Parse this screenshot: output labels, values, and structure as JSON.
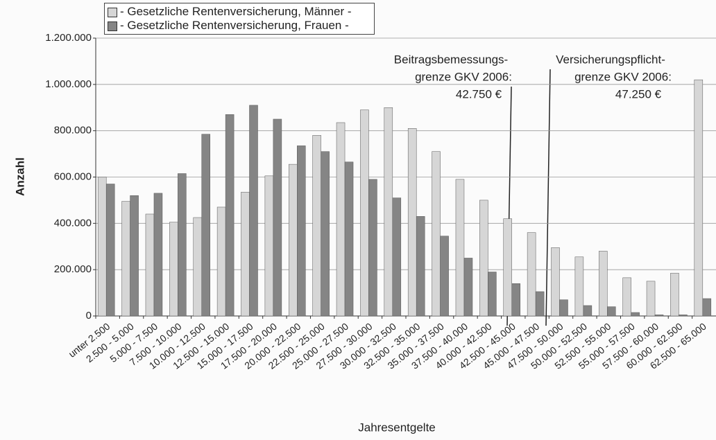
{
  "chart_data": {
    "type": "bar",
    "xlabel": "Jahresentgelte",
    "ylabel": "Anzahl",
    "categories": [
      "unter 2.500",
      "2.500 - 5.000",
      "5.000 - 7.500",
      "7.500 - 10.000",
      "10.000 - 12.500",
      "12.500 - 15.000",
      "15.000 - 17.500",
      "17.500 - 20.000",
      "20.000 - 22.500",
      "22.500 - 25.000",
      "25.000 - 27.500",
      "27.500 - 30.000",
      "30.000 - 32.500",
      "32.500 - 35.000",
      "35.000 - 37.500",
      "37.500 - 40.000",
      "40.000 - 42.500",
      "42.500 - 45.000",
      "45.000 - 47.500",
      "47.500 - 50.000",
      "50.000 - 52.500",
      "52.500 - 55.000",
      "55.000 - 57.500",
      "57.500 - 60.000",
      "60.000 - 62.500",
      "62.500 - 65.000"
    ],
    "series": [
      {
        "name": "- Gesetzliche Rentenversicherung, Männer -",
        "color": "#d6d6d6",
        "values": [
          600000,
          495000,
          440000,
          405000,
          425000,
          470000,
          535000,
          605000,
          655000,
          780000,
          835000,
          890000,
          900000,
          810000,
          710000,
          590000,
          500000,
          420000,
          360000,
          295000,
          255000,
          280000,
          165000,
          150000,
          185000,
          1020000
        ]
      },
      {
        "name": "- Gesetzliche Rentenversicherung, Frauen -",
        "color": "#858585",
        "values": [
          570000,
          520000,
          530000,
          615000,
          785000,
          870000,
          910000,
          850000,
          735000,
          710000,
          665000,
          590000,
          510000,
          430000,
          345000,
          250000,
          190000,
          140000,
          105000,
          70000,
          45000,
          40000,
          15000,
          5000,
          5000,
          75000
        ]
      }
    ],
    "ylim": [
      0,
      1200000
    ],
    "yticks": [
      0,
      {
        "value": 200000,
        "label": "200.000"
      },
      {
        "value": 400000,
        "label": "400.000"
      },
      {
        "value": 600000,
        "label": "600.000"
      },
      {
        "value": 800000,
        "label": "800.000"
      },
      {
        "value": 1000000,
        "label": "1.000.000"
      },
      {
        "value": 1200000,
        "label": "1.200.000"
      }
    ],
    "grid": true,
    "annotations": [
      [
        "Beitragsbemessungs-",
        "grenze GKV 2006:",
        "42.750 €"
      ],
      [
        "Versicherungspflicht-",
        "grenze GKV 2006:",
        "47.250 €"
      ]
    ]
  }
}
